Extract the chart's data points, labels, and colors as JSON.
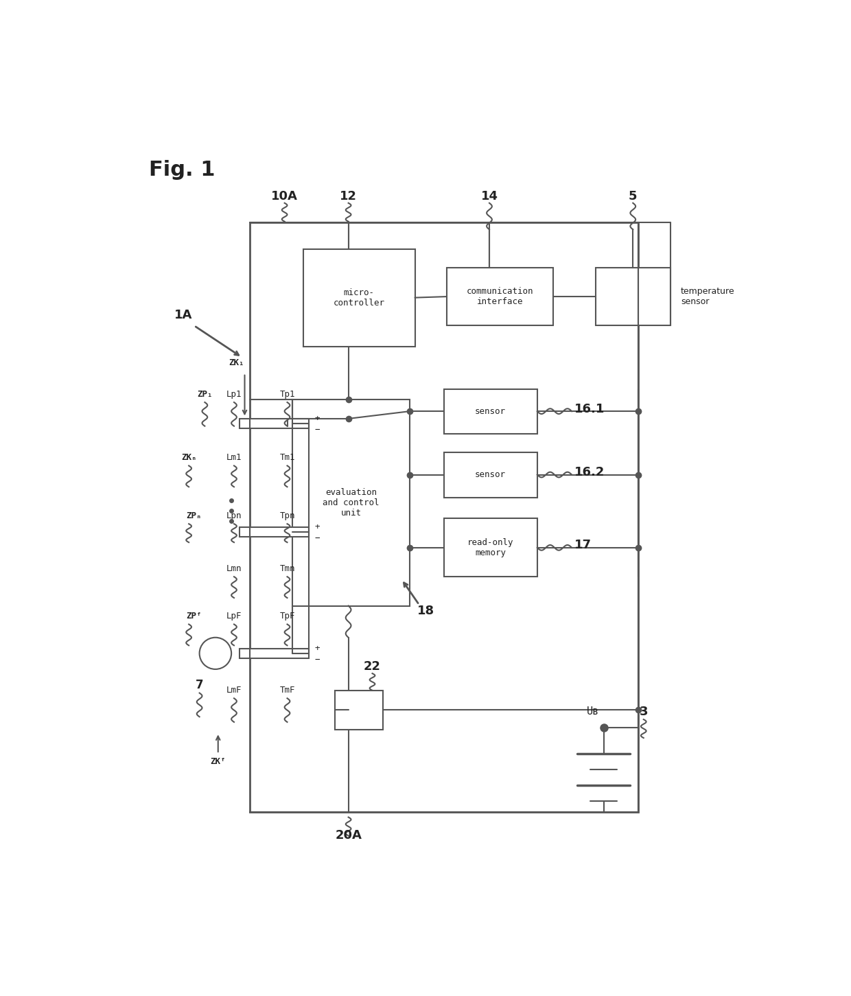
{
  "background_color": "#ffffff",
  "line_color": "#555555",
  "text_color": "#222222",
  "figsize": [
    12.4,
    14.51
  ],
  "dpi": 100,
  "fig_label": "Fig. 1",
  "labels": {
    "1A": "1A",
    "10A": "10A",
    "12": "12",
    "14": "14",
    "5": "5",
    "micro": "micro-\ncontroller",
    "comm": "communication\ninterface",
    "temp": "temperature\nsensor",
    "eval": "evaluation\nand control\nunit",
    "sensor1": "sensor",
    "sensor2": "sensor",
    "rom": "read-only\nmemory",
    "16_1": "16.1",
    "16_2": "16.2",
    "17": "17",
    "18": "18",
    "22": "22",
    "20A": "20A",
    "3": "3",
    "7": "7",
    "ZK1": "ZK₁",
    "ZKn": "ZKₙ",
    "ZKF": "ZKᶠ",
    "ZP1": "ZP₁",
    "ZPn": "ZPₙ",
    "ZPF": "ZPᶠ",
    "Lp1": "Lp1",
    "Lm1": "Lm1",
    "Lpn": "Lpn",
    "Lmn": "Lmn",
    "LpF": "LpF",
    "LmF": "LmF",
    "Tp1": "Tp1",
    "Tm1": "Tm1",
    "Tpn": "Tpn",
    "Tmn": "Tmn",
    "TpF": "TpF",
    "TmF": "TmF",
    "UB": "Uʙ",
    "plus": "+",
    "minus": "−"
  }
}
